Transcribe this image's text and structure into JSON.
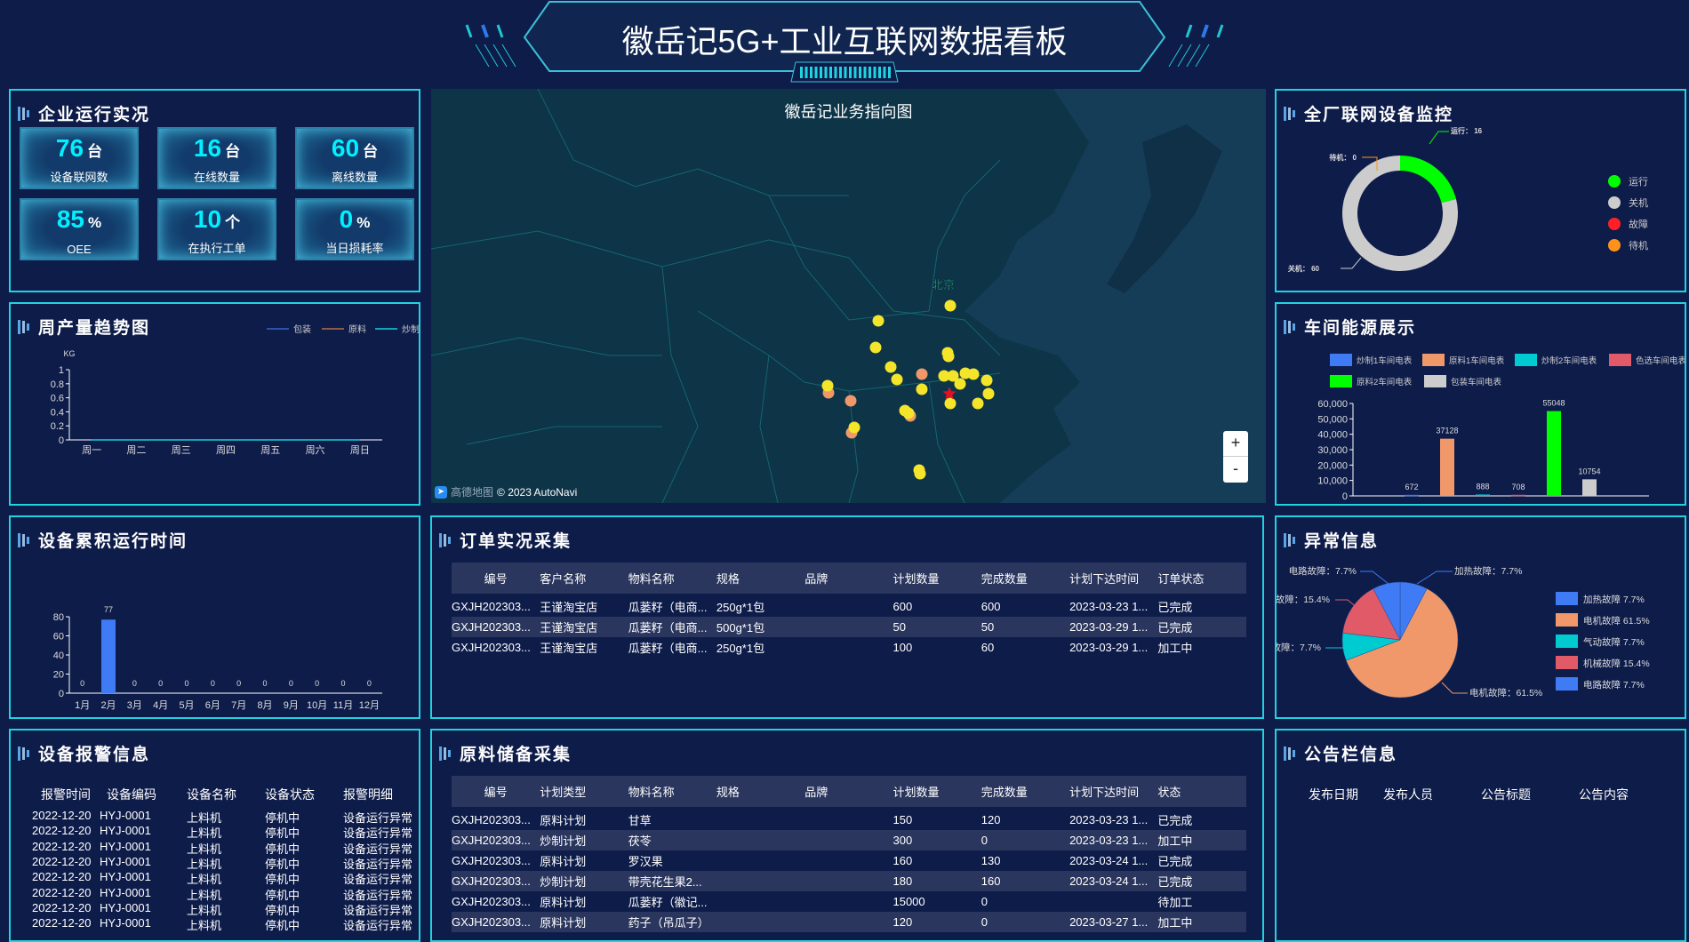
{
  "header": {
    "title": "徽岳记5G+工业互联网数据看板"
  },
  "ops": {
    "title": "企业运行实况",
    "kpis": [
      {
        "value": "76",
        "unit": "台",
        "label": "设备联网数"
      },
      {
        "value": "16",
        "unit": "台",
        "label": "在线数量"
      },
      {
        "value": "60",
        "unit": "台",
        "label": "离线数量"
      },
      {
        "value": "85",
        "unit": "%",
        "label": "OEE"
      },
      {
        "value": "10",
        "unit": "个",
        "label": "在执行工单"
      },
      {
        "value": "0",
        "unit": "%",
        "label": "当日损耗率"
      }
    ]
  },
  "weekly": {
    "title": "周产量趋势图"
  },
  "runtime": {
    "title": "设备累积运行时间"
  },
  "alarms": {
    "title": "设备报警信息",
    "columns": [
      "报警时间",
      "设备编码",
      "设备名称",
      "设备状态",
      "报警明细"
    ],
    "rows": [
      [
        "2022-12-20",
        "HYJ-0001",
        "上料机",
        "停机中",
        "设备运行异常"
      ],
      [
        "2022-12-20",
        "HYJ-0001",
        "上料机",
        "停机中",
        "设备运行异常"
      ],
      [
        "2022-12-20",
        "HYJ-0001",
        "上料机",
        "停机中",
        "设备运行异常"
      ],
      [
        "2022-12-20",
        "HYJ-0001",
        "上料机",
        "停机中",
        "设备运行异常"
      ],
      [
        "2022-12-20",
        "HYJ-0001",
        "上料机",
        "停机中",
        "设备运行异常"
      ],
      [
        "2022-12-20",
        "HYJ-0001",
        "上料机",
        "停机中",
        "设备运行异常"
      ],
      [
        "2022-12-20",
        "HYJ-0001",
        "上料机",
        "停机中",
        "设备运行异常"
      ],
      [
        "2022-12-20",
        "HYJ-0001",
        "上料机",
        "停机中",
        "设备运行异常"
      ]
    ]
  },
  "map": {
    "title": "徽岳记业务指向图",
    "city_label": "北京",
    "zoom_in": "+",
    "zoom_out": "-",
    "logo": "高德地图",
    "copyright": "© 2023 AutoNavi",
    "colors": {
      "customer": "#f5e52a",
      "supplier": "#f0986a",
      "hq": "#e0102a"
    }
  },
  "orders": {
    "title": "订单实况采集",
    "columns": [
      "编号",
      "客户名称",
      "物料名称",
      "规格",
      "品牌",
      "计划数量",
      "完成数量",
      "计划下达时间",
      "订单状态"
    ],
    "rows": [
      [
        "GXJH202303...",
        "王谨淘宝店",
        "瓜蒌籽（电商...",
        "250g*1包",
        "",
        "600",
        "600",
        "2023-03-23 1...",
        "已完成"
      ],
      [
        "GXJH202303...",
        "王谨淘宝店",
        "瓜蒌籽（电商...",
        "500g*1包",
        "",
        "50",
        "50",
        "2023-03-29 1...",
        "已完成"
      ],
      [
        "GXJH202303...",
        "王谨淘宝店",
        "瓜蒌籽（电商...",
        "250g*1包",
        "",
        "100",
        "60",
        "2023-03-29 1...",
        "加工中"
      ]
    ]
  },
  "materials": {
    "title": "原料储备采集",
    "columns": [
      "编号",
      "计划类型",
      "物料名称",
      "规格",
      "品牌",
      "计划数量",
      "完成数量",
      "计划下达时间",
      "状态"
    ],
    "rows": [
      [
        "GXJH202303...",
        "原料计划",
        "甘草",
        "",
        "",
        "150",
        "120",
        "2023-03-23 1...",
        "已完成"
      ],
      [
        "GXJH202303...",
        "炒制计划",
        "茯苓",
        "",
        "",
        "300",
        "0",
        "2023-03-23 1...",
        "加工中"
      ],
      [
        "GXJH202303...",
        "原料计划",
        "罗汉果",
        "",
        "",
        "160",
        "130",
        "2023-03-24 1...",
        "已完成"
      ],
      [
        "GXJH202303...",
        "炒制计划",
        "带壳花生果2...",
        "",
        "",
        "180",
        "160",
        "2023-03-24 1...",
        "已完成"
      ],
      [
        "GXJH202303...",
        "原料计划",
        "瓜蒌籽（徽记...",
        "",
        "",
        "15000",
        "0",
        "",
        "待加工"
      ],
      [
        "GXJH202303...",
        "原料计划",
        "药子（吊瓜子）",
        "",
        "",
        "120",
        "0",
        "2023-03-27 1...",
        "加工中"
      ]
    ]
  },
  "devices": {
    "title": "全厂联网设备监控"
  },
  "energy": {
    "title": "车间能源展示"
  },
  "faults": {
    "title": "异常信息"
  },
  "notices": {
    "title": "公告栏信息",
    "columns": [
      "发布日期",
      "发布人员",
      "公告标题",
      "公告内容"
    ],
    "rows": []
  },
  "chart_data": [
    {
      "id": "weekly",
      "type": "line",
      "ylabel": "KG",
      "categories": [
        "周一",
        "周二",
        "周三",
        "周四",
        "周五",
        "周六",
        "周日"
      ],
      "ylim": [
        0,
        1
      ],
      "yticks": [
        0,
        0.2,
        0.4,
        0.6,
        0.8,
        1
      ],
      "legend": "top-right",
      "series": [
        {
          "name": "包装",
          "color": "#2f4fa8",
          "values": [
            0,
            0,
            0,
            0,
            0,
            0,
            0
          ]
        },
        {
          "name": "原料",
          "color": "#8a5a4a",
          "values": [
            0,
            0,
            0,
            0,
            0,
            0,
            0
          ]
        },
        {
          "name": "炒制",
          "color": "#13a5b5",
          "values": [
            0,
            0,
            0,
            0,
            0,
            0,
            0
          ]
        }
      ]
    },
    {
      "id": "runtime",
      "type": "bar",
      "categories": [
        "1月",
        "2月",
        "3月",
        "4月",
        "5月",
        "6月",
        "7月",
        "8月",
        "9月",
        "10月",
        "11月",
        "12月"
      ],
      "values": [
        0,
        77,
        0,
        0,
        0,
        0,
        0,
        0,
        0,
        0,
        0,
        0
      ],
      "ylim": [
        0,
        80
      ],
      "yticks": [
        0,
        20,
        40,
        60,
        80
      ],
      "color": "#3f7bf5"
    },
    {
      "id": "devices",
      "type": "pie",
      "donut": true,
      "legend": "right",
      "series": [
        {
          "name": "运行",
          "value": 16,
          "color": "#00ff00"
        },
        {
          "name": "关机",
          "value": 60,
          "color": "#cccccc"
        },
        {
          "name": "故障",
          "value": 0,
          "color": "#ff1f24"
        },
        {
          "name": "待机",
          "value": 0,
          "color": "#ff9219"
        }
      ]
    },
    {
      "id": "energy",
      "type": "bar",
      "legend": "top",
      "ylim": [
        0,
        60000
      ],
      "yticks": [
        "0",
        "10,000",
        "20,000",
        "30,000",
        "40,000",
        "50,000",
        "60,000"
      ],
      "series": [
        {
          "name": "炒制1车间电表",
          "value": 672,
          "color": "#3f7bf5"
        },
        {
          "name": "原料1车间电表",
          "value": 37128,
          "color": "#f0986a"
        },
        {
          "name": "炒制2车间电表",
          "value": 888,
          "color": "#00cbd0"
        },
        {
          "name": "色选车间电表",
          "value": 708,
          "color": "#e05a68"
        },
        {
          "name": "原料2车间电表",
          "value": 55048,
          "color": "#00ff00"
        },
        {
          "name": "包装车间电表",
          "value": 10754,
          "color": "#cccccc"
        }
      ]
    },
    {
      "id": "faults",
      "type": "pie",
      "legend": "right",
      "series": [
        {
          "name": "加热故障",
          "value": 7.7,
          "color": "#3f7bf5"
        },
        {
          "name": "电机故障",
          "value": 61.5,
          "color": "#f0986a"
        },
        {
          "name": "气动故障",
          "value": 7.7,
          "color": "#00cbd0"
        },
        {
          "name": "机械故障",
          "value": 15.4,
          "color": "#e05a68"
        },
        {
          "name": "电路故障",
          "value": 7.7,
          "color": "#3f7bf5"
        }
      ]
    }
  ]
}
